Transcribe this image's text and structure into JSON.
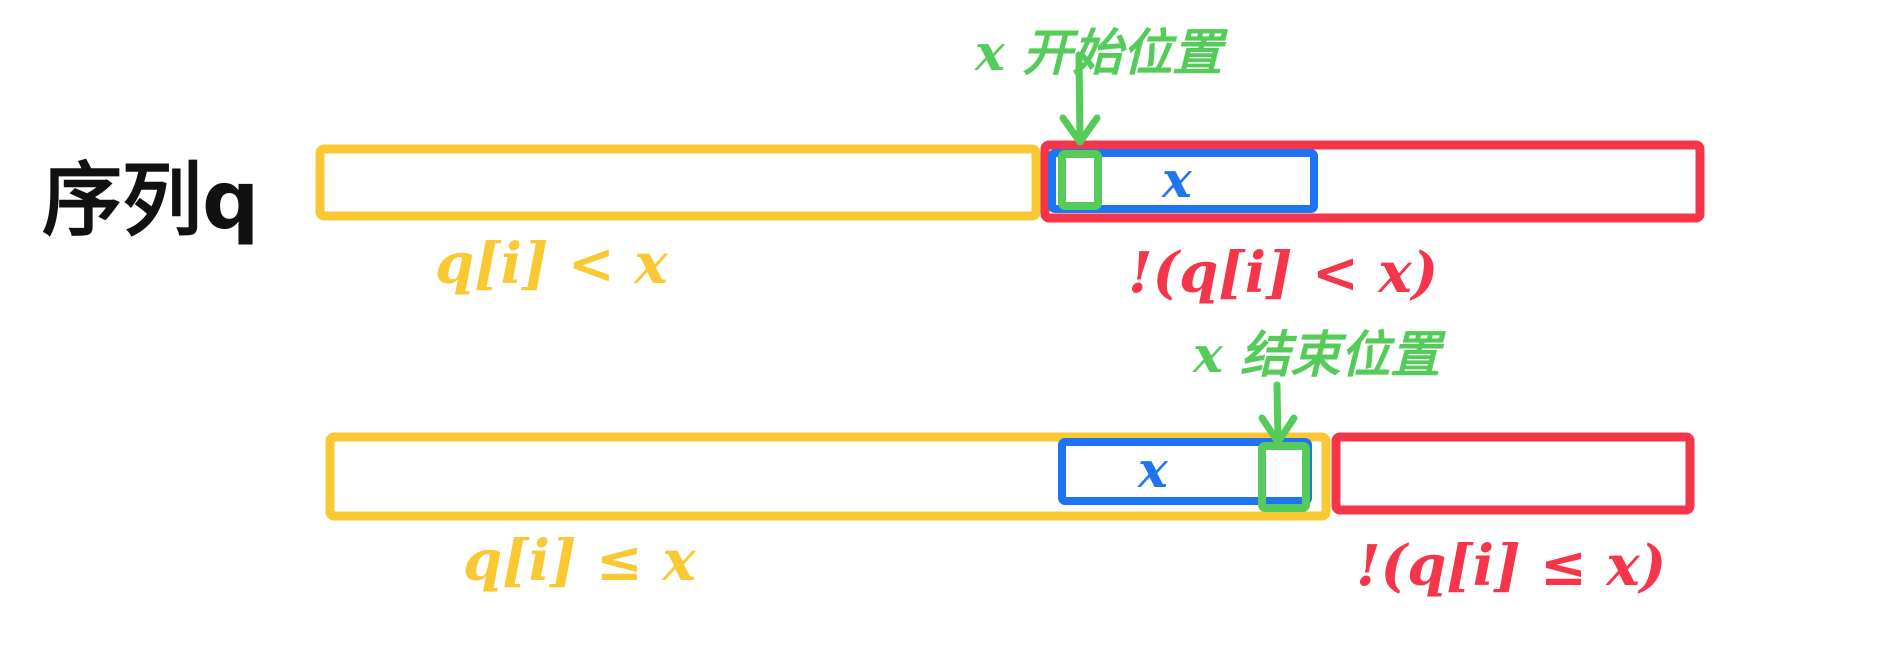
{
  "sequence_label": "序列q",
  "top_row": {
    "start_note": "x 开始位置",
    "blue_x": "x",
    "left_condition": "q[i] < x",
    "right_condition": "!(q[i] < x)"
  },
  "bottom_row": {
    "end_note": "x 结束位置",
    "blue_x": "x",
    "left_condition": "q[i] ≤ x",
    "right_condition": "!(q[i] ≤ x)"
  },
  "colors": {
    "yellow": "#f9c832",
    "red": "#f4354a",
    "blue": "#1e74f2",
    "green": "#55cc5a",
    "black": "#111111"
  }
}
